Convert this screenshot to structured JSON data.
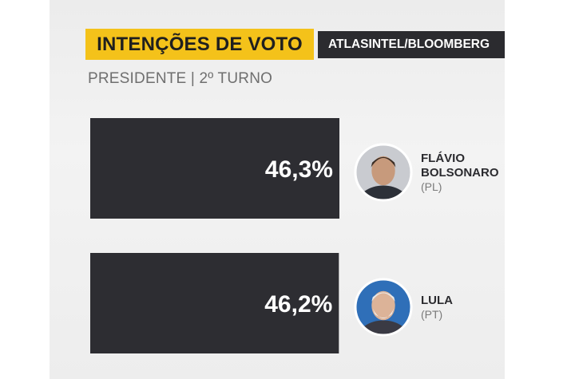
{
  "header": {
    "title": "INTENÇÕES DE VOTO",
    "source": "ATLASINTEL/BLOOMBERG",
    "subtitle": "PRESIDENTE | 2º TURNO"
  },
  "colors": {
    "title_bg": "#f4c21a",
    "source_bg": "#2b2b2f",
    "bar": "#2d2d32",
    "background": "#ededed"
  },
  "chart_data": {
    "type": "bar",
    "orientation": "horizontal",
    "unit": "%",
    "categories": [
      "FLÁVIO BOLSONARO (PL)",
      "LULA (PT)"
    ],
    "values": [
      46.3,
      46.2
    ],
    "value_labels": [
      "46,3%",
      "46,2%"
    ],
    "candidates": [
      {
        "name_lines": [
          "FLÁVIO",
          "BOLSONARO"
        ],
        "party": "(PL)",
        "value": 46.3,
        "label": "46,3%",
        "photo": "candidate-photo-icon"
      },
      {
        "name_lines": [
          "LULA"
        ],
        "party": "(PT)",
        "value": 46.2,
        "label": "46,2%",
        "photo": "candidate-photo-icon"
      }
    ],
    "title": "INTENÇÕES DE VOTO",
    "subtitle": "PRESIDENTE | 2º TURNO",
    "legend": "none",
    "grid": false
  }
}
